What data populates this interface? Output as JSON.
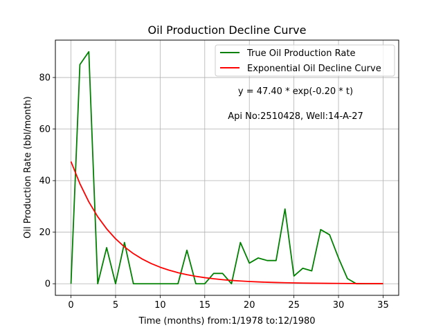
{
  "chart_data": {
    "type": "line",
    "title": "Oil Production Decline Curve",
    "xlabel": "Time (months) from:1/1978 to:12/1980",
    "ylabel": "Oil Production Rate (bbl/month)",
    "xlim": [
      -1.75,
      36.75
    ],
    "ylim": [
      -4.5,
      94.5
    ],
    "x_ticks": [
      0,
      5,
      10,
      15,
      20,
      25,
      30,
      35
    ],
    "y_ticks": [
      0,
      20,
      40,
      60,
      80
    ],
    "grid": true,
    "legend_position": "top-right",
    "annotations": [
      "y = 47.40 * exp(-0.20 * t)",
      "Api No:2510428, Well:14-A-27"
    ],
    "series": [
      {
        "name": "True Oil Production Rate",
        "color": "#008000",
        "x": [
          0,
          1,
          2,
          3,
          4,
          5,
          6,
          7,
          8,
          9,
          10,
          11,
          12,
          13,
          14,
          15,
          16,
          17,
          18,
          19,
          20,
          21,
          22,
          23,
          24,
          25,
          26,
          27,
          28,
          29,
          30,
          31,
          32,
          33,
          34,
          35
        ],
        "y": [
          0,
          85,
          90,
          0,
          14,
          0,
          16,
          0,
          0,
          0,
          0,
          0,
          0,
          13,
          0,
          0,
          4,
          4,
          0,
          16,
          8,
          10,
          9,
          9,
          29,
          3,
          6,
          5,
          21,
          19,
          10,
          2,
          0,
          0,
          0,
          0
        ]
      },
      {
        "name": "Exponential Oil Decline Curve",
        "color": "#ff0000",
        "x": [
          0,
          1,
          2,
          3,
          4,
          5,
          6,
          7,
          8,
          9,
          10,
          11,
          12,
          13,
          14,
          15,
          16,
          17,
          18,
          19,
          20,
          21,
          22,
          23,
          24,
          25,
          26,
          27,
          28,
          29,
          30,
          31,
          32,
          33,
          34,
          35
        ],
        "y": [
          47.4,
          38.81,
          31.77,
          26.01,
          21.3,
          17.44,
          14.28,
          11.69,
          9.57,
          7.83,
          6.41,
          5.25,
          4.3,
          3.52,
          2.88,
          2.36,
          1.93,
          1.58,
          1.29,
          1.06,
          0.87,
          0.71,
          0.58,
          0.48,
          0.39,
          0.32,
          0.26,
          0.21,
          0.18,
          0.14,
          0.12,
          0.1,
          0.08,
          0.06,
          0.05,
          0.04
        ]
      }
    ]
  }
}
